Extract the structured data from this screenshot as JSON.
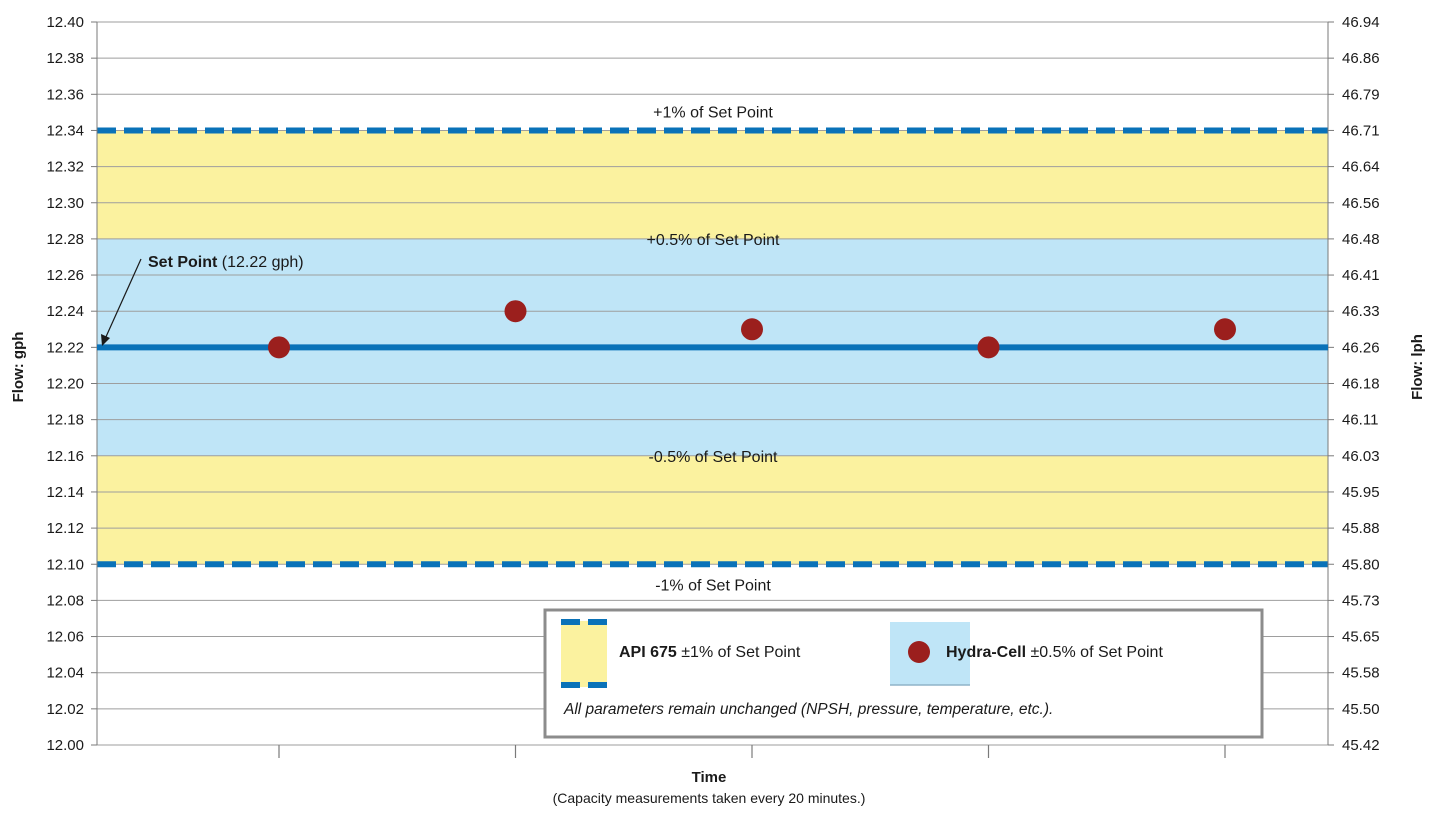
{
  "chart_data": {
    "type": "scatter",
    "xlabel": "Time",
    "xlabel_note": "(Capacity measurements taken every 20 minutes.)",
    "ylabel": "Flow: gph",
    "y2label": "Flow: lph",
    "ylim": [
      12.0,
      12.4
    ],
    "ytick_step": 0.02,
    "yticks": [
      "12.00",
      "12.02",
      "12.04",
      "12.06",
      "12.08",
      "12.10",
      "12.12",
      "12.14",
      "12.16",
      "12.18",
      "12.20",
      "12.22",
      "12.24",
      "12.26",
      "12.28",
      "12.30",
      "12.32",
      "12.34",
      "12.36",
      "12.38",
      "12.40"
    ],
    "y2ticks": [
      "45.42",
      "45.50",
      "45.58",
      "45.65",
      "45.73",
      "45.80",
      "45.88",
      "45.95",
      "46.03",
      "46.11",
      "46.18",
      "46.26",
      "46.33",
      "46.41",
      "46.48",
      "46.56",
      "46.64",
      "46.71",
      "46.79",
      "46.86",
      "46.94"
    ],
    "x_count": 5,
    "grid": true,
    "set_point": {
      "value": 12.22,
      "label_bold": "Set Point",
      "label_rest": " (12.22 gph)"
    },
    "bands": [
      {
        "name": "api",
        "from": 12.1,
        "to": 12.34,
        "color": "#fbf29f"
      },
      {
        "name": "hydra",
        "from": 12.16,
        "to": 12.28,
        "color": "#bfe5f7"
      }
    ],
    "limits": [
      {
        "value": 12.34,
        "label": "+1% of Set Point",
        "label_pos": "above"
      },
      {
        "value": 12.1,
        "label": "-1% of Set Point",
        "label_pos": "below"
      }
    ],
    "band_labels": [
      {
        "value": 12.28,
        "label": "+0.5% of Set Point"
      },
      {
        "value": 12.16,
        "label": "-0.5% of Set Point"
      }
    ],
    "series": [
      {
        "values": [
          12.22,
          12.24,
          12.23,
          12.22,
          12.23
        ]
      }
    ],
    "legend": {
      "placement": "bottom-right",
      "api_bold": "API 675",
      "api_rest": " ±1% of Set Point",
      "hydra_bold": "Hydra-Cell",
      "hydra_rest": " ±0.5% of Set Point",
      "note": "All parameters remain unchanged (NPSH, pressure, temperature, etc.)."
    },
    "colors": {
      "grid": "#9e9e9e",
      "axis": "#7a7a7a",
      "setpoint": "#0a72b8",
      "limit": "#0a72b8",
      "point": "#9b1f1d",
      "legend_border": "#8c8c8c"
    }
  }
}
